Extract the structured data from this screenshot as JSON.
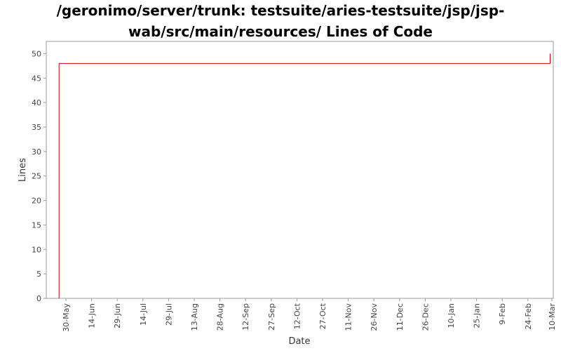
{
  "chart_data": {
    "type": "line",
    "title_line1": "/geronimo/server/trunk: testsuite/aries-testsuite/jsp/jsp-",
    "title_line2": "wab/src/main/resources/ Lines of Code",
    "xlabel": "Date",
    "ylabel": "Lines",
    "ylim": [
      0,
      52.5
    ],
    "y_ticks": [
      0,
      5,
      10,
      15,
      20,
      25,
      30,
      35,
      40,
      45,
      50
    ],
    "x_tick_labels": [
      "30-May",
      "14-Jun",
      "29-Jun",
      "14-Jul",
      "29-Jul",
      "13-Aug",
      "28-Aug",
      "12-Sep",
      "27-Sep",
      "12-Oct",
      "27-Oct",
      "11-Nov",
      "26-Nov",
      "11-Dec",
      "26-Dec",
      "10-Jan",
      "25-Jan",
      "9-Feb",
      "24-Feb",
      "10-Mar"
    ],
    "grid": false,
    "series": [
      {
        "color": "#cc0000",
        "x": [
          "26-May",
          "26-May",
          "9-Mar",
          "9-Mar"
        ],
        "y": [
          0,
          48,
          48,
          50
        ]
      }
    ]
  }
}
